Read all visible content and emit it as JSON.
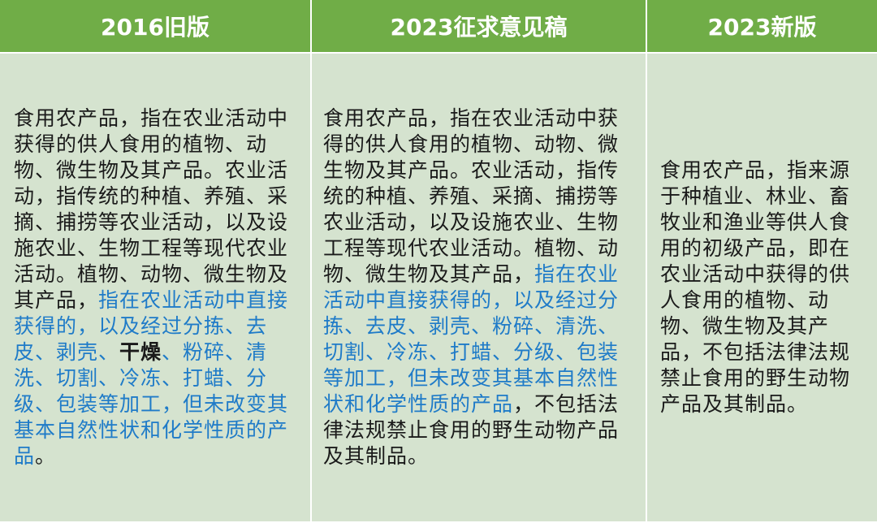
{
  "headers": [
    "2016旧版",
    "2023征求意见稿",
    "2023新版"
  ],
  "colors": {
    "header_bg": "#70ad47",
    "cell_bg": "#d5e3cf",
    "highlight_text": "#1f7bc8"
  },
  "col1": [
    {
      "text": "食用农产品，指在农业活动中获得的供人食用的植物、动物、微生物及其产品。农业活动，指传统的种植、养殖、采摘、捕捞等农业活动，以及设施农业、生物工程等现代农业活动。植物、动物、微生物及其产品，",
      "style": "normal"
    },
    {
      "text": "指在农业活动中直接获得的，以及经过分拣、去皮、剥壳、",
      "style": "blue"
    },
    {
      "text": "干燥",
      "style": "bold"
    },
    {
      "text": "、粉碎、清洗、切割、冷冻、打蜡、分级、包装等加工，但未改变其基本自然性状和化学性质的产品",
      "style": "blue"
    },
    {
      "text": "。",
      "style": "normal"
    }
  ],
  "col2": [
    {
      "text": "食用农产品，指在农业活动中获得的供人食用的植物、动物、微生物及其产品。农业活动，指传统的种植、养殖、采摘、捕捞等农业活动，以及设施农业、生物工程等现代农业活动。植物、动物、微生物及其产品，",
      "style": "normal"
    },
    {
      "text": "指在农业活动中直接获得的，以及经过分拣、去皮、剥壳、粉碎、清洗、切割、冷冻、打蜡、分级、包装等加工，但未改变其基本自然性状和化学性质的产品",
      "style": "blue"
    },
    {
      "text": "，不包括法律法规禁止食用的野生动物产品及其制品。",
      "style": "normal"
    }
  ],
  "col3": [
    {
      "text": "食用农产品，指来源于种植业、林业、畜牧业和渔业等供人食用的初级产品，即在农业活动中获得的供人食用的植物、动物、微生物及其产品，不包括法律法规禁止食用的野生动物产品及其制品。",
      "style": "normal"
    }
  ]
}
